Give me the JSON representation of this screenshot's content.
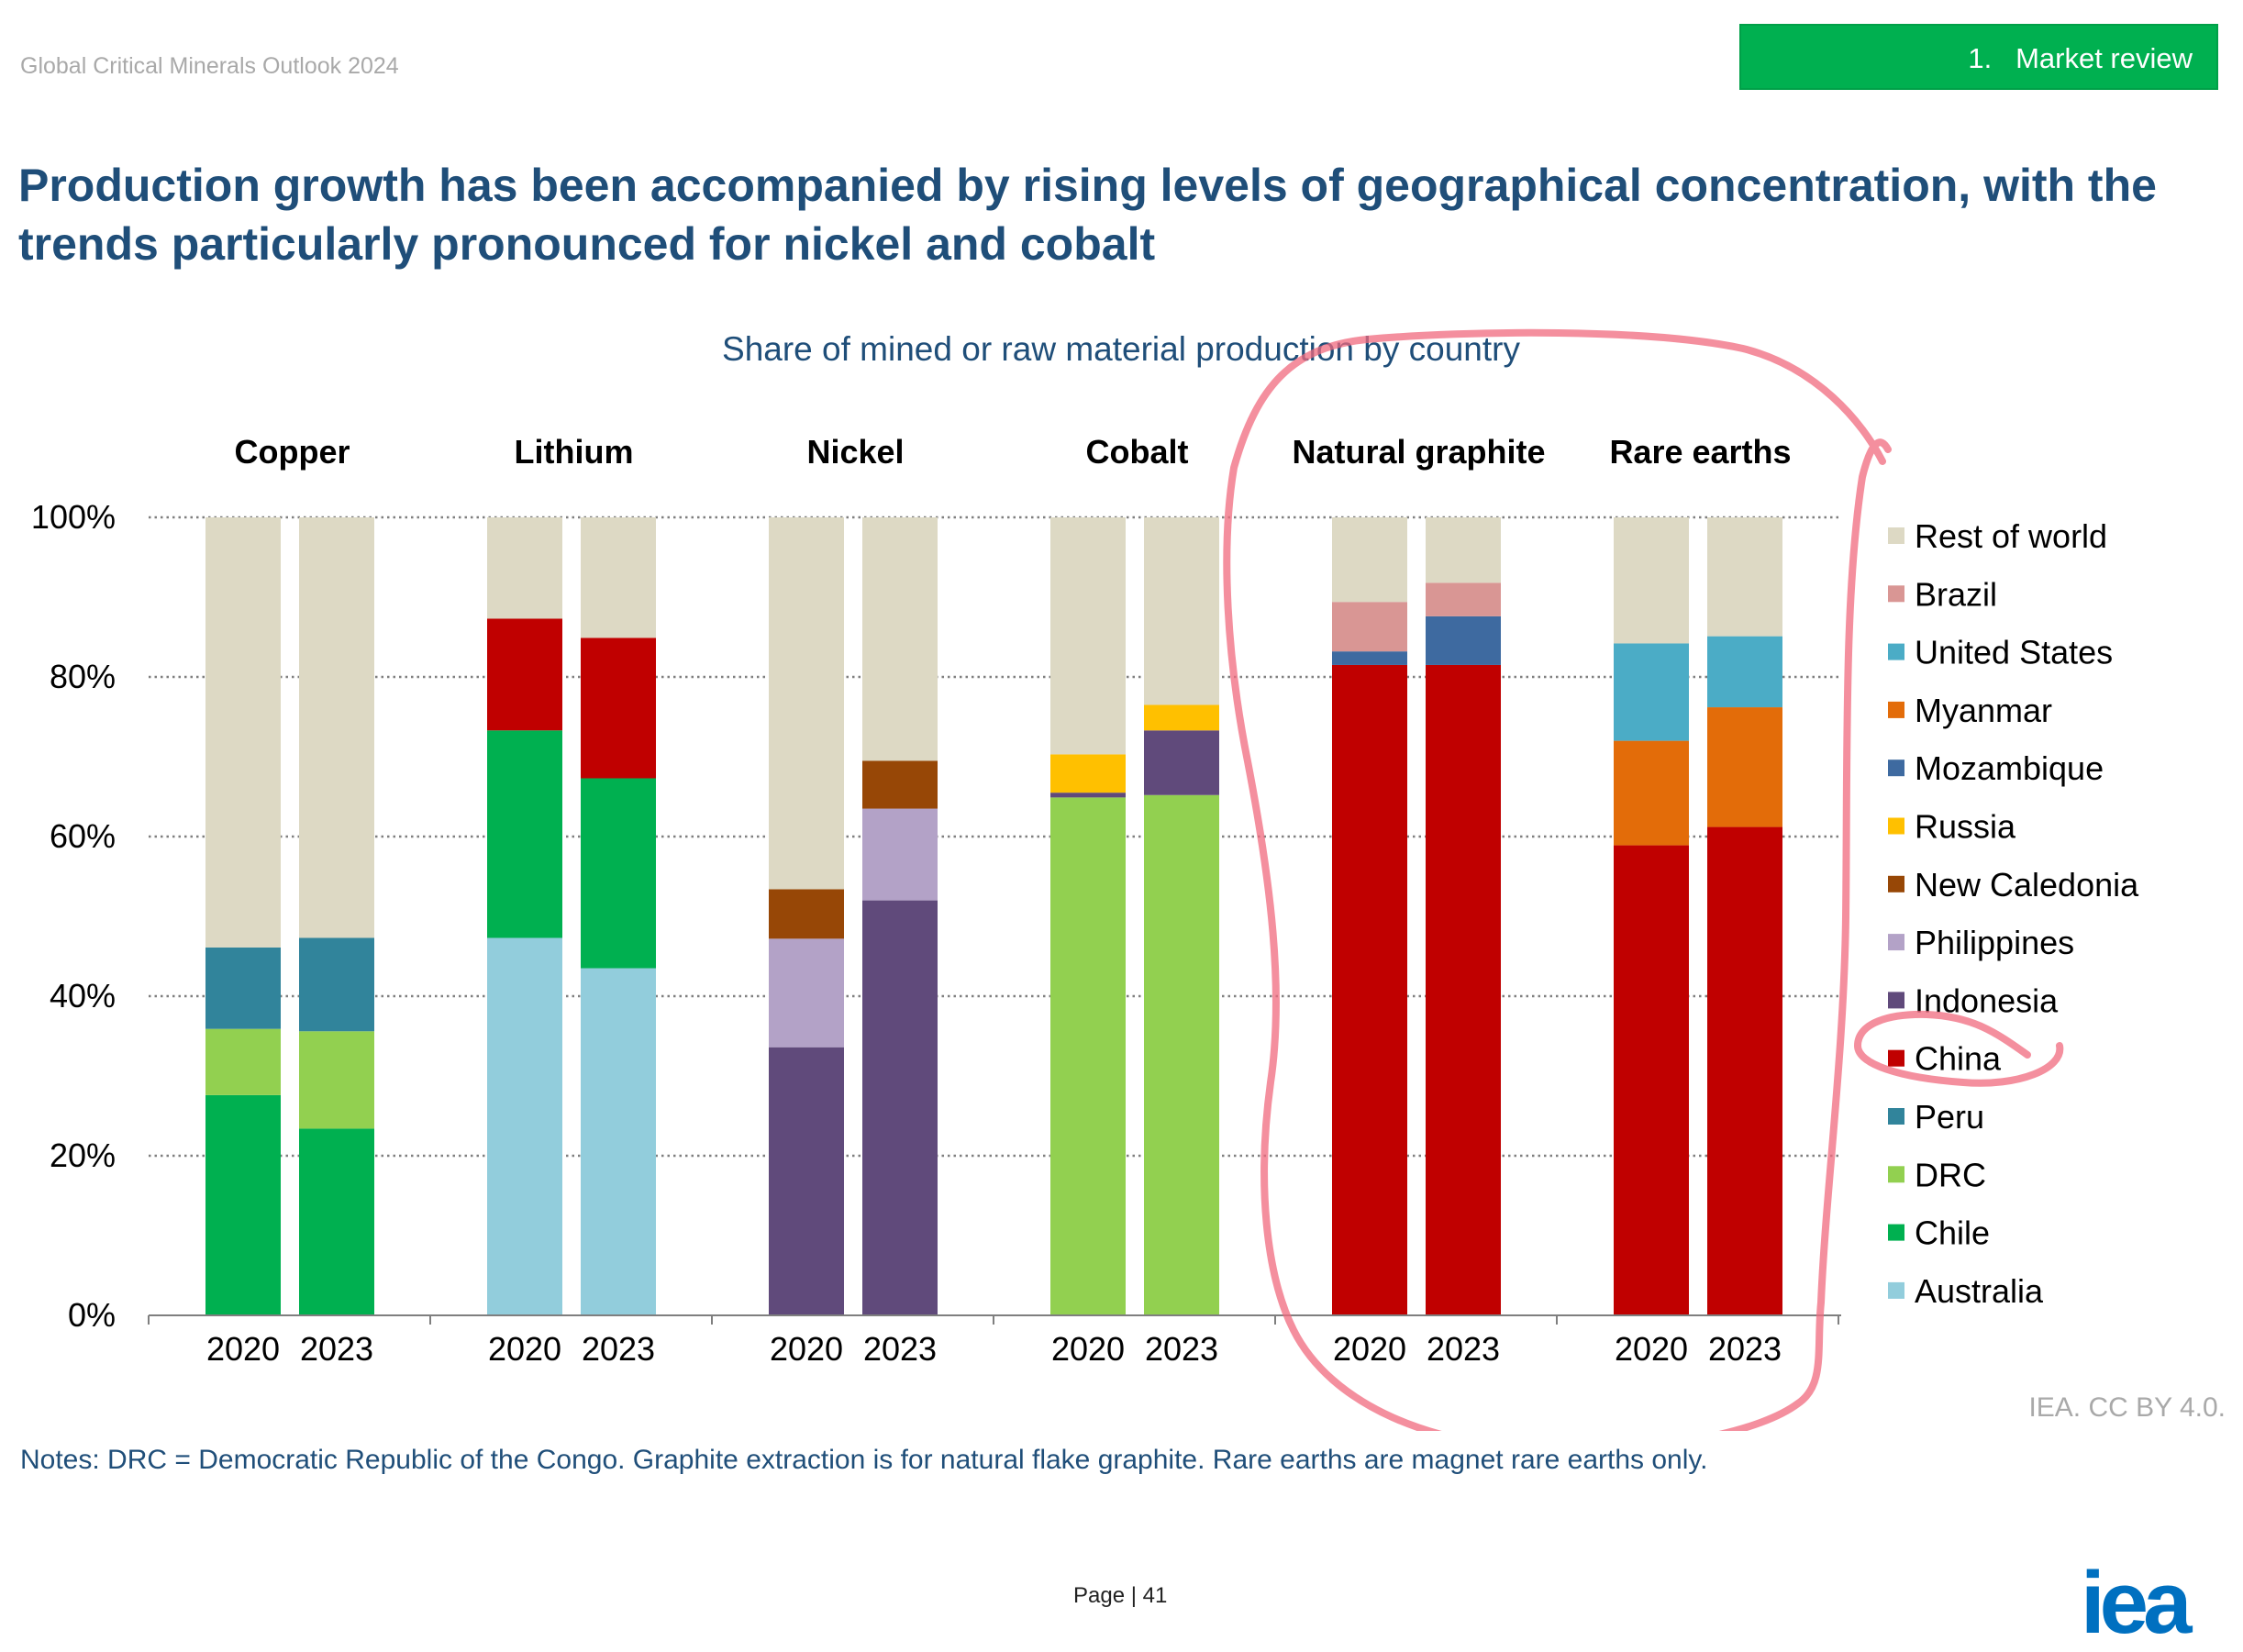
{
  "header": {
    "report_name": "Global Critical Minerals Outlook 2024",
    "section": "1.   Market review",
    "section_color": "#00b050"
  },
  "headline": "Production growth has been accompanied by rising levels of geographical concentration, with the trends particularly pronounced for nickel and cobalt",
  "notes": "Notes: DRC = Democratic Republic of the Congo. Graphite extraction is for natural flake graphite. Rare earths are magnet rare earths only.",
  "source": "IEA. CC BY 4.0.",
  "footer": {
    "page_label": "Page",
    "page_sep": "|",
    "page_number": "41",
    "logo": "iea"
  },
  "annotation": {
    "type": "hand-drawn circle",
    "color": "#f06a7d",
    "highlights": [
      "Natural graphite",
      "Rare earths",
      "China"
    ]
  },
  "chart_data": {
    "type": "bar",
    "stacked": true,
    "title": "Share of mined or raw material production by country",
    "groups": [
      "Copper",
      "Lithium",
      "Nickel",
      "Cobalt",
      "Natural graphite",
      "Rare earths"
    ],
    "years": [
      "2020",
      "2023"
    ],
    "y_ticks": [
      "0%",
      "20%",
      "40%",
      "60%",
      "80%",
      "100%"
    ],
    "ylim": [
      0,
      100
    ],
    "grid": true,
    "legend_position": "right",
    "series": [
      {
        "name": "Australia",
        "color": "#92cddc",
        "values": {
          "Lithium": [
            47.3,
            43.5
          ]
        }
      },
      {
        "name": "Chile",
        "color": "#00b050",
        "values": {
          "Copper": [
            27.6,
            23.4
          ],
          "Lithium": [
            26.0,
            23.8
          ]
        }
      },
      {
        "name": "DRC",
        "color": "#92d050",
        "values": {
          "Copper": [
            8.3,
            12.2
          ],
          "Cobalt": [
            64.9,
            65.2
          ]
        }
      },
      {
        "name": "Peru",
        "color": "#31849b",
        "values": {
          "Copper": [
            10.2,
            11.7
          ]
        }
      },
      {
        "name": "China",
        "color": "#c00000",
        "values": {
          "Lithium": [
            14.0,
            17.6
          ],
          "Natural graphite": [
            81.5,
            81.5
          ],
          "Rare earths": [
            58.9,
            61.2
          ]
        }
      },
      {
        "name": "Indonesia",
        "color": "#604a7b",
        "values": {
          "Nickel": [
            33.6,
            52.0
          ],
          "Cobalt": [
            0.6,
            8.1
          ]
        }
      },
      {
        "name": "Philippines",
        "color": "#b3a2c7",
        "values": {
          "Nickel": [
            13.6,
            11.5
          ]
        }
      },
      {
        "name": "New Caledonia",
        "color": "#974706",
        "values": {
          "Nickel": [
            6.2,
            6.0
          ]
        }
      },
      {
        "name": "Russia",
        "color": "#ffc000",
        "values": {
          "Cobalt": [
            4.8,
            3.2
          ]
        }
      },
      {
        "name": "Mozambique",
        "color": "#3e6aa0",
        "values": {
          "Natural graphite": [
            1.7,
            6.1
          ]
        }
      },
      {
        "name": "Myanmar",
        "color": "#e36c09",
        "values": {
          "Rare earths": [
            13.1,
            15.0
          ]
        }
      },
      {
        "name": "United States",
        "color": "#4bacc6",
        "values": {
          "Rare earths": [
            12.2,
            8.9
          ]
        }
      },
      {
        "name": "Brazil",
        "color": "#d99694",
        "values": {
          "Natural graphite": [
            6.2,
            4.2
          ]
        }
      },
      {
        "name": "Rest of world",
        "color": "#ddd9c4",
        "values": {
          "Copper": [
            53.9,
            52.7
          ],
          "Lithium": [
            12.7,
            15.1
          ],
          "Nickel": [
            46.6,
            30.5
          ],
          "Cobalt": [
            29.7,
            23.5
          ],
          "Natural graphite": [
            10.6,
            8.2
          ],
          "Rare earths": [
            15.8,
            14.9
          ]
        }
      }
    ],
    "legend_order": [
      "Rest of world",
      "Brazil",
      "United States",
      "Myanmar",
      "Mozambique",
      "Russia",
      "New Caledonia",
      "Philippines",
      "Indonesia",
      "China",
      "Peru",
      "DRC",
      "Chile",
      "Australia"
    ]
  }
}
